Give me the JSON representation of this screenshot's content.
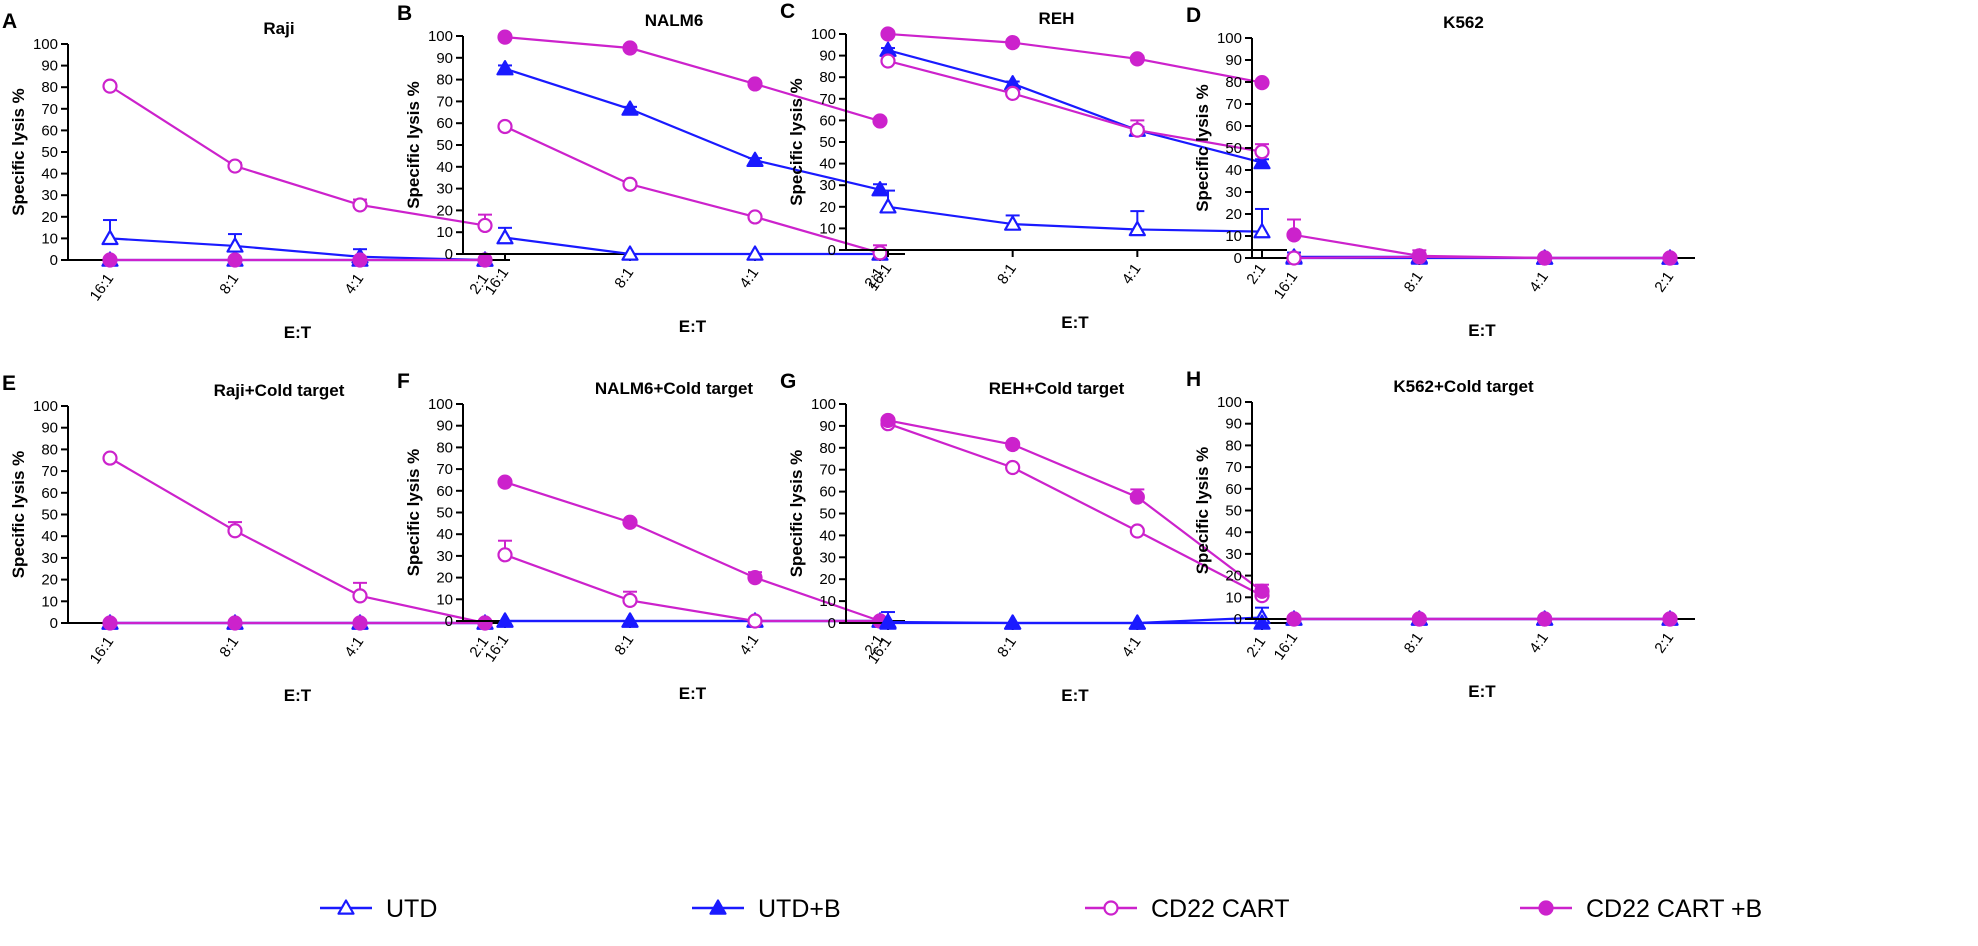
{
  "colors": {
    "blue": "#1a1aff",
    "magenta": "#cc22cc",
    "axis": "#000000"
  },
  "legend": [
    {
      "label": "UTD",
      "marker": "triangle-open",
      "color": "#1a1aff"
    },
    {
      "label": "UTD+B",
      "marker": "triangle-filled",
      "color": "#1a1aff"
    },
    {
      "label": "CD22 CART",
      "marker": "circle-open",
      "color": "#cc22cc"
    },
    {
      "label": "CD22 CART +B",
      "marker": "circle-filled",
      "color": "#cc22cc"
    }
  ],
  "chart_data": [
    {
      "panel": "A",
      "type": "line",
      "title": "Raji",
      "xlabel": "E:T",
      "ylabel": "Specific lysis %",
      "categories": [
        "16:1",
        "8:1",
        "4:1",
        "2:1"
      ],
      "yticks": [
        0,
        10,
        20,
        30,
        40,
        50,
        60,
        70,
        80,
        90,
        100
      ],
      "ylim": [
        0,
        100
      ],
      "series": [
        {
          "name": "UTD",
          "values": [
            10,
            6.5,
            1.5,
            0
          ],
          "err": [
            8.5,
            5.5,
            3.5,
            0
          ]
        },
        {
          "name": "UTD+B",
          "values": [
            0,
            0,
            0,
            0
          ],
          "err": [
            0,
            0,
            0,
            0
          ]
        },
        {
          "name": "CD22 CART",
          "values": [
            80.5,
            43.5,
            25.5,
            16
          ],
          "err": [
            1,
            1.5,
            2.5,
            5
          ]
        },
        {
          "name": "CD22 CART +B",
          "values": [
            0,
            0,
            0,
            0
          ],
          "err": [
            0,
            0,
            0,
            0
          ]
        }
      ]
    },
    {
      "panel": "B",
      "type": "line",
      "title": "NALM6",
      "xlabel": "E:T",
      "ylabel": "Specific lysis %",
      "categories": [
        "16:1",
        "8:1",
        "4:1",
        "2:1"
      ],
      "yticks": [
        0,
        10,
        20,
        30,
        40,
        50,
        60,
        70,
        80,
        90,
        100
      ],
      "ylim": [
        0,
        100
      ],
      "series": [
        {
          "name": "UTD",
          "values": [
            7.5,
            0,
            0,
            0
          ],
          "err": [
            4.5,
            0,
            0,
            0
          ]
        },
        {
          "name": "UTD+B",
          "values": [
            85,
            66.5,
            43,
            29.5
          ],
          "err": [
            1.5,
            1,
            1,
            2.5
          ]
        },
        {
          "name": "CD22 CART",
          "values": [
            58.5,
            32,
            17,
            0.5
          ],
          "err": [
            1,
            1,
            1,
            3.5
          ]
        },
        {
          "name": "CD22 CART +B",
          "values": [
            99.5,
            94.5,
            78,
            61
          ],
          "err": [
            0.5,
            0.5,
            1,
            1
          ]
        }
      ]
    },
    {
      "panel": "C",
      "type": "line",
      "title": "REH",
      "xlabel": "E:T",
      "ylabel": "Specific lysis %",
      "categories": [
        "16:1",
        "8:1",
        "4:1",
        "2:1"
      ],
      "yticks": [
        0,
        10,
        20,
        30,
        40,
        50,
        60,
        70,
        80,
        90,
        100
      ],
      "ylim": [
        0,
        100
      ],
      "series": [
        {
          "name": "UTD",
          "values": [
            20,
            12,
            9.5,
            8.5
          ],
          "err": [
            7.5,
            4,
            8.5,
            10.5
          ]
        },
        {
          "name": "UTD+B",
          "values": [
            92.5,
            77,
            55.5,
            40.5
          ],
          "err": [
            1,
            1,
            1.5,
            1.5
          ]
        },
        {
          "name": "CD22 CART",
          "values": [
            87.5,
            72.5,
            55.5,
            45.5
          ],
          "err": [
            1,
            1.5,
            4.5,
            3.5
          ]
        },
        {
          "name": "CD22 CART +B",
          "values": [
            100,
            96,
            88.5,
            77.5
          ],
          "err": [
            0.5,
            0.5,
            1,
            1
          ]
        }
      ]
    },
    {
      "panel": "D",
      "type": "line",
      "title": "K562",
      "xlabel": "E:T",
      "ylabel": "Specific lysis %",
      "categories": [
        "16:1",
        "8:1",
        "4:1",
        "2:1"
      ],
      "yticks": [
        0,
        10,
        20,
        30,
        40,
        50,
        60,
        70,
        80,
        90,
        100
      ],
      "ylim": [
        0,
        100
      ],
      "series": [
        {
          "name": "UTD",
          "values": [
            0.5,
            0.5,
            0,
            0
          ],
          "err": [
            2,
            1,
            0,
            0
          ]
        },
        {
          "name": "UTD+B",
          "values": [
            0,
            0,
            0,
            0
          ],
          "err": [
            0,
            0,
            0,
            0
          ]
        },
        {
          "name": "CD22 CART",
          "values": [
            0,
            0.5,
            0,
            0
          ],
          "err": [
            0,
            1,
            0,
            0
          ]
        },
        {
          "name": "CD22 CART +B",
          "values": [
            10.5,
            1,
            0,
            0
          ],
          "err": [
            7,
            2.5,
            0.5,
            0.5
          ]
        }
      ]
    },
    {
      "panel": "E",
      "type": "line",
      "title": "Raji+Cold target",
      "xlabel": "E:T",
      "ylabel": "Specific lysis %",
      "categories": [
        "16:1",
        "8:1",
        "4:1",
        "2:1"
      ],
      "yticks": [
        0,
        10,
        20,
        30,
        40,
        50,
        60,
        70,
        80,
        90,
        100
      ],
      "ylim": [
        0,
        100
      ],
      "series": [
        {
          "name": "UTD",
          "values": [
            0,
            0,
            0,
            0
          ],
          "err": [
            0,
            0,
            0,
            0
          ]
        },
        {
          "name": "UTD+B",
          "values": [
            0,
            0,
            0,
            0
          ],
          "err": [
            0,
            0,
            0,
            0
          ]
        },
        {
          "name": "CD22 CART",
          "values": [
            76,
            42.5,
            12.5,
            0
          ],
          "err": [
            1,
            4,
            6,
            0.5
          ]
        },
        {
          "name": "CD22 CART +B",
          "values": [
            0,
            0,
            0,
            0
          ],
          "err": [
            0,
            0,
            0,
            0
          ]
        }
      ]
    },
    {
      "panel": "F",
      "type": "line",
      "title": "NALM6+Cold target",
      "xlabel": "E:T",
      "ylabel": "Specific lysis %",
      "categories": [
        "16:1",
        "8:1",
        "4:1",
        "2:1"
      ],
      "yticks": [
        0,
        10,
        20,
        30,
        40,
        50,
        60,
        70,
        80,
        90,
        100
      ],
      "ylim": [
        0,
        100
      ],
      "series": [
        {
          "name": "UTD",
          "values": [
            0,
            0,
            0,
            0
          ],
          "err": [
            0,
            0,
            0,
            0
          ]
        },
        {
          "name": "UTD+B",
          "values": [
            0,
            0,
            0,
            0
          ],
          "err": [
            0,
            0,
            0,
            0
          ]
        },
        {
          "name": "CD22 CART",
          "values": [
            30.5,
            9.5,
            0,
            0
          ],
          "err": [
            6.5,
            4,
            0.5,
            0
          ]
        },
        {
          "name": "CD22 CART +B",
          "values": [
            64,
            45.5,
            20,
            0
          ],
          "err": [
            1,
            1,
            2.5,
            0.5
          ]
        }
      ]
    },
    {
      "panel": "G",
      "type": "line",
      "title": "REH+Cold target",
      "xlabel": "E:T",
      "ylabel": "Specific lysis %",
      "categories": [
        "16:1",
        "8:1",
        "4:1",
        "2:1"
      ],
      "yticks": [
        0,
        10,
        20,
        30,
        40,
        50,
        60,
        70,
        80,
        90,
        100
      ],
      "ylim": [
        0,
        100
      ],
      "series": [
        {
          "name": "UTD",
          "values": [
            0.5,
            0,
            0,
            2.5
          ],
          "err": [
            4.5,
            0,
            0,
            4.5
          ]
        },
        {
          "name": "UTD+B",
          "values": [
            0,
            0,
            0,
            0
          ],
          "err": [
            0,
            0,
            0,
            0
          ]
        },
        {
          "name": "CD22 CART",
          "values": [
            91,
            71,
            42,
            12.5
          ],
          "err": [
            1,
            1,
            1,
            3
          ]
        },
        {
          "name": "CD22 CART +B",
          "values": [
            92.5,
            81.5,
            57.5,
            14.5
          ],
          "err": [
            1,
            1,
            3.5,
            3
          ]
        }
      ]
    },
    {
      "panel": "H",
      "type": "line",
      "title": "K562+Cold target",
      "xlabel": "E:T",
      "ylabel": "Specific lysis %",
      "categories": [
        "16:1",
        "8:1",
        "4:1",
        "2:1"
      ],
      "yticks": [
        0,
        10,
        20,
        30,
        40,
        50,
        60,
        70,
        80,
        90,
        100
      ],
      "ylim": [
        0,
        100
      ],
      "series": [
        {
          "name": "UTD",
          "values": [
            0,
            0,
            0,
            0
          ],
          "err": [
            0,
            0,
            0,
            0
          ]
        },
        {
          "name": "UTD+B",
          "values": [
            0,
            0,
            0,
            0
          ],
          "err": [
            0,
            0,
            0,
            0
          ]
        },
        {
          "name": "CD22 CART",
          "values": [
            0,
            0,
            0,
            0
          ],
          "err": [
            0,
            0,
            0,
            0
          ]
        },
        {
          "name": "CD22 CART +B",
          "values": [
            0,
            0,
            0,
            0
          ],
          "err": [
            0,
            0,
            0,
            0
          ]
        }
      ]
    }
  ]
}
